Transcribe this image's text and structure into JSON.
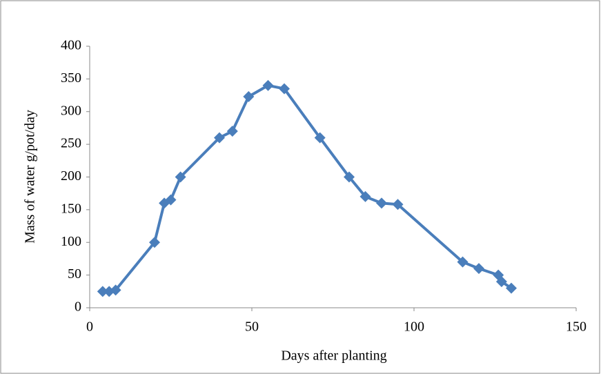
{
  "chart_data": {
    "type": "line",
    "x_label": "Days after planting",
    "y_label": "Mass of water g/pot/day",
    "series": [
      {
        "color": "#4a7ebb",
        "x": [
          4,
          6,
          8,
          20,
          23,
          25,
          28,
          40,
          44,
          49,
          55,
          60,
          71,
          80,
          85,
          90,
          95,
          115,
          120,
          126,
          127,
          130
        ],
        "values": [
          25,
          25,
          27,
          100,
          160,
          165,
          200,
          260,
          270,
          323,
          340,
          335,
          260,
          200,
          170,
          160,
          158,
          70,
          60,
          50,
          40,
          30
        ]
      }
    ],
    "xlim": [
      0,
      150
    ],
    "xticks": [
      0,
      50,
      100,
      150
    ],
    "ylim": [
      0,
      400
    ],
    "yticks": [
      0,
      50,
      100,
      150,
      200,
      250,
      300,
      350,
      400
    ],
    "grid": false
  }
}
